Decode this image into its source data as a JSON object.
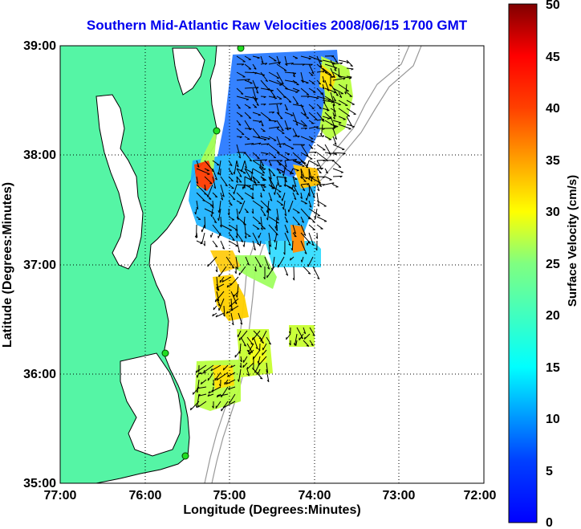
{
  "title": "Southern Mid-Atlantic Raw Velocities 2008/06/15 1700 GMT",
  "axes": {
    "xlabel": "Longitude (Degrees:Minutes)",
    "ylabel": "Latitude (Degrees:Minutes)",
    "x_ticks": [
      "77:00",
      "76:00",
      "75:00",
      "74:00",
      "73:00",
      "72:00"
    ],
    "y_ticks": [
      "39:00",
      "38:00",
      "37:00",
      "36:00",
      "35:00"
    ],
    "xlim": [
      -77,
      -72
    ],
    "ylim": [
      35,
      39
    ],
    "grid": "dotted"
  },
  "colorbar": {
    "label": "Surface Velocity (cm/s)",
    "ticks": [
      "50",
      "45",
      "40",
      "35",
      "30",
      "25",
      "20",
      "15",
      "10",
      "5",
      "0"
    ],
    "range": [
      0,
      50
    ],
    "colormap": "jet"
  },
  "colors": {
    "land": "#55f5a5",
    "coast": "#000000",
    "bathymetry": "#999999",
    "title": "#0000ee",
    "station": "#22dd22"
  }
}
